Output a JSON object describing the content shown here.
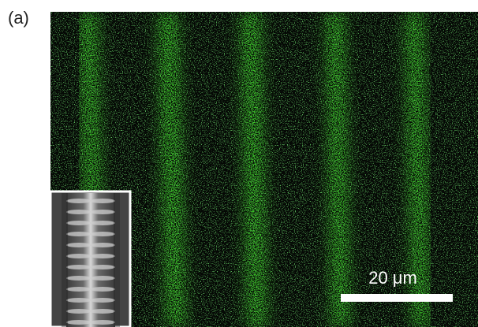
{
  "panel_label": "(a)",
  "scale_bar": {
    "label": "20 μm"
  }
}
